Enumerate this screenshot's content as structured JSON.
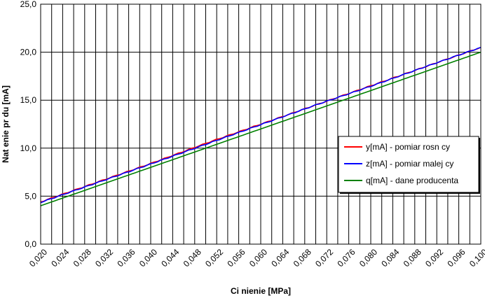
{
  "chart_data": {
    "type": "line",
    "xlabel": "Ci nienie [MPa]",
    "ylabel": "Nat enie pr du [mA]",
    "xlim": [
      0.02,
      0.1
    ],
    "ylim": [
      0,
      25
    ],
    "x_ticks": [
      "0,020",
      "0,024",
      "0,028",
      "0,032",
      "0,036",
      "0,040",
      "0,044",
      "0,048",
      "0,052",
      "0,056",
      "0,060",
      "0,064",
      "0,068",
      "0,072",
      "0,076",
      "0,080",
      "0,084",
      "0,088",
      "0,092",
      "0,096",
      "0,100"
    ],
    "y_ticks": [
      "0,0",
      "5,0",
      "10,0",
      "15,0",
      "20,0",
      "25,0"
    ],
    "grid": true,
    "legend_position": "center-right",
    "series": [
      {
        "name": "y[mA] - pomiar rosn cy",
        "color": "#ff0000",
        "x": [
          0.02,
          0.03,
          0.04,
          0.05,
          0.06,
          0.07,
          0.08,
          0.09,
          0.1
        ],
        "y": [
          4.4,
          6.4,
          8.4,
          10.5,
          12.5,
          14.5,
          16.5,
          18.5,
          20.5
        ]
      },
      {
        "name": "z[mA] - pomiar malej cy",
        "color": "#0000ff",
        "x": [
          0.02,
          0.03,
          0.04,
          0.05,
          0.06,
          0.07,
          0.08,
          0.09,
          0.1
        ],
        "y": [
          4.35,
          6.35,
          8.35,
          10.4,
          12.45,
          14.5,
          16.45,
          18.5,
          20.5
        ]
      },
      {
        "name": "q[mA] - dane producenta",
        "color": "#008000",
        "x": [
          0.02,
          0.1
        ],
        "y": [
          4.0,
          20.0
        ]
      }
    ]
  }
}
